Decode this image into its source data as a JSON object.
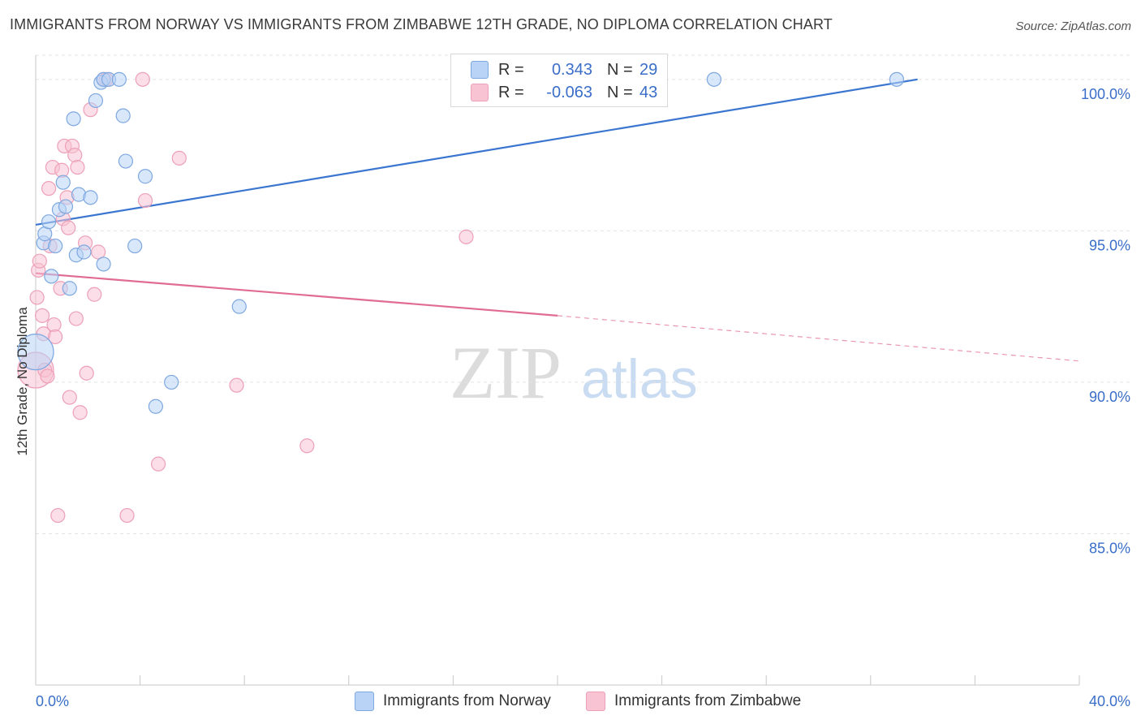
{
  "header": {
    "title": "IMMIGRANTS FROM NORWAY VS IMMIGRANTS FROM ZIMBABWE 12TH GRADE, NO DIPLOMA CORRELATION CHART",
    "source": "Source: ZipAtlas.com"
  },
  "legend": {
    "norway": {
      "r_label": "R =",
      "r_value": "0.343",
      "n_label": "N =",
      "n_value": "29"
    },
    "zimbabwe": {
      "r_label": "R =",
      "r_value": "-0.063",
      "n_label": "N =",
      "n_value": "43"
    }
  },
  "bottom_legend": {
    "norway": "Immigrants from Norway",
    "zimbabwe": "Immigrants from Zimbabwe"
  },
  "watermark": {
    "zip": "ZIP",
    "atlas": "atlas"
  },
  "colors": {
    "norway_fill": "#b8d3f5",
    "norway_stroke": "#7ea8e0",
    "norway_line": "#3a76d0",
    "zimbabwe_fill": "#f8c3d3",
    "zimbabwe_stroke": "#eda0b8",
    "zimbabwe_line": "#e06b94",
    "tick_text": "#3a6ec8"
  },
  "chart_data": {
    "type": "scatter",
    "title": "IMMIGRANTS FROM NORWAY VS IMMIGRANTS FROM ZIMBABWE 12TH GRADE, NO DIPLOMA CORRELATION CHART",
    "xlabel": "",
    "ylabel": "12th Grade, No Diploma",
    "xlim": [
      0,
      40
    ],
    "ylim": [
      80,
      100.8
    ],
    "x_tick_labels": [
      {
        "value": 0,
        "label": "0.0%"
      },
      {
        "value": 40,
        "label": "40.0%"
      }
    ],
    "y_tick_labels": [
      {
        "value": 100,
        "label": "100.0%"
      },
      {
        "value": 95,
        "label": "95.0%"
      },
      {
        "value": 90,
        "label": "90.0%"
      },
      {
        "value": 85,
        "label": "85.0%"
      }
    ],
    "grid": true,
    "series": [
      {
        "name": "Immigrants from Norway",
        "r": 0.343,
        "n": 29,
        "trend": {
          "x": [
            0,
            33.8
          ],
          "y": [
            95.2,
            100.0
          ],
          "dashed_to": null
        },
        "points": [
          {
            "x": 0.0,
            "y": 91.0,
            "big": true
          },
          {
            "x": 0.3,
            "y": 94.6
          },
          {
            "x": 0.35,
            "y": 94.9
          },
          {
            "x": 0.5,
            "y": 95.3
          },
          {
            "x": 0.6,
            "y": 93.5
          },
          {
            "x": 0.75,
            "y": 94.5
          },
          {
            "x": 0.9,
            "y": 95.7
          },
          {
            "x": 1.05,
            "y": 96.6
          },
          {
            "x": 1.15,
            "y": 95.8
          },
          {
            "x": 1.3,
            "y": 93.1
          },
          {
            "x": 1.45,
            "y": 98.7
          },
          {
            "x": 1.55,
            "y": 94.2
          },
          {
            "x": 1.65,
            "y": 96.2
          },
          {
            "x": 1.85,
            "y": 94.3
          },
          {
            "x": 2.1,
            "y": 96.1
          },
          {
            "x": 2.3,
            "y": 99.3
          },
          {
            "x": 2.5,
            "y": 99.9
          },
          {
            "x": 2.6,
            "y": 100.0
          },
          {
            "x": 2.6,
            "y": 93.9
          },
          {
            "x": 2.8,
            "y": 100.0
          },
          {
            "x": 3.2,
            "y": 100.0
          },
          {
            "x": 3.35,
            "y": 98.8
          },
          {
            "x": 3.45,
            "y": 97.3
          },
          {
            "x": 3.8,
            "y": 94.5
          },
          {
            "x": 4.2,
            "y": 96.8
          },
          {
            "x": 4.6,
            "y": 89.2
          },
          {
            "x": 5.2,
            "y": 90.0
          },
          {
            "x": 7.8,
            "y": 92.5
          },
          {
            "x": 26.0,
            "y": 100.0
          },
          {
            "x": 33.0,
            "y": 100.0
          }
        ]
      },
      {
        "name": "Immigrants from Zimbabwe",
        "r": -0.063,
        "n": 43,
        "trend": {
          "x": [
            0,
            20.0
          ],
          "y": [
            93.6,
            92.2
          ],
          "dashed_to": {
            "x": 40.0,
            "y": 90.7
          }
        },
        "points": [
          {
            "x": 0.0,
            "y": 90.4,
            "big": true
          },
          {
            "x": 0.05,
            "y": 92.8
          },
          {
            "x": 0.1,
            "y": 93.7
          },
          {
            "x": 0.15,
            "y": 94.0
          },
          {
            "x": 0.25,
            "y": 92.2
          },
          {
            "x": 0.3,
            "y": 91.6
          },
          {
            "x": 0.35,
            "y": 90.4
          },
          {
            "x": 0.45,
            "y": 90.2
          },
          {
            "x": 0.5,
            "y": 96.4
          },
          {
            "x": 0.55,
            "y": 94.5
          },
          {
            "x": 0.65,
            "y": 97.1
          },
          {
            "x": 0.7,
            "y": 91.9
          },
          {
            "x": 0.75,
            "y": 91.5
          },
          {
            "x": 0.85,
            "y": 85.6
          },
          {
            "x": 0.95,
            "y": 93.1
          },
          {
            "x": 1.0,
            "y": 97.0
          },
          {
            "x": 1.05,
            "y": 95.4
          },
          {
            "x": 1.1,
            "y": 97.8
          },
          {
            "x": 1.2,
            "y": 96.1
          },
          {
            "x": 1.25,
            "y": 95.1
          },
          {
            "x": 1.3,
            "y": 89.5
          },
          {
            "x": 1.4,
            "y": 97.8
          },
          {
            "x": 1.5,
            "y": 97.5
          },
          {
            "x": 1.55,
            "y": 92.1
          },
          {
            "x": 1.6,
            "y": 97.1
          },
          {
            "x": 1.7,
            "y": 89.0
          },
          {
            "x": 1.9,
            "y": 94.6
          },
          {
            "x": 1.95,
            "y": 90.3
          },
          {
            "x": 2.1,
            "y": 99.0
          },
          {
            "x": 2.25,
            "y": 92.9
          },
          {
            "x": 2.4,
            "y": 94.3
          },
          {
            "x": 2.6,
            "y": 100.0
          },
          {
            "x": 2.7,
            "y": 100.0
          },
          {
            "x": 3.5,
            "y": 85.6
          },
          {
            "x": 4.1,
            "y": 100.0
          },
          {
            "x": 4.2,
            "y": 96.0
          },
          {
            "x": 4.7,
            "y": 87.3
          },
          {
            "x": 5.5,
            "y": 97.4
          },
          {
            "x": 7.7,
            "y": 89.9
          },
          {
            "x": 10.4,
            "y": 87.9
          },
          {
            "x": 16.5,
            "y": 94.8
          }
        ]
      }
    ]
  }
}
